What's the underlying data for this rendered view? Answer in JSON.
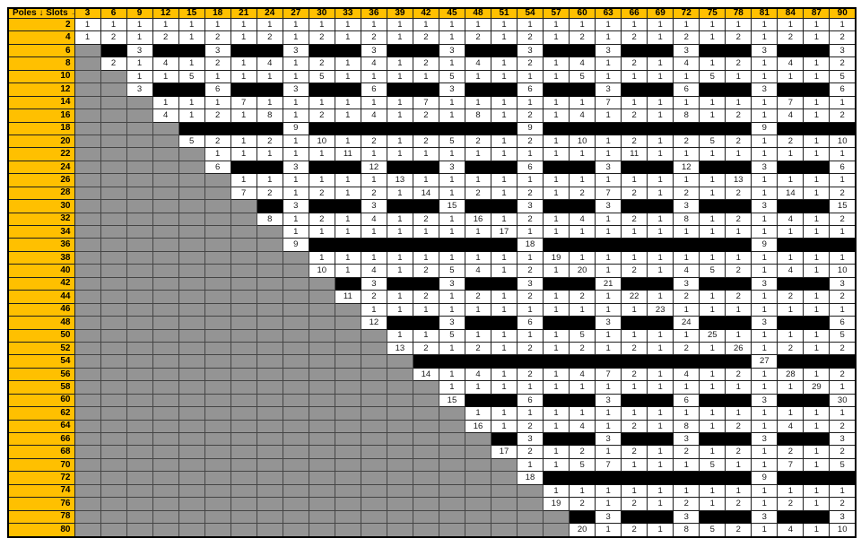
{
  "table": {
    "corner_label": "Poles ↓ Slots →"
  },
  "colors": {
    "header_bg": "#FFC000",
    "header_text": "#000000",
    "cell_text": "#1A1A1A",
    "white_cell": "#FFFFFF",
    "black_cell": "#000000",
    "gray_cell": "#949494",
    "grid_border": "#1F1F1F",
    "outer_border": "#000000"
  },
  "chart_data": {
    "type": "heatmap",
    "title": "Poles ↓ Slots →",
    "x_axis_label": "Slots",
    "y_axis_label": "Poles",
    "grid": true,
    "legend": "none",
    "columns": [
      3,
      6,
      9,
      12,
      15,
      18,
      21,
      24,
      27,
      30,
      33,
      36,
      39,
      42,
      45,
      48,
      51,
      54,
      57,
      60,
      63,
      66,
      69,
      72,
      75,
      78,
      81,
      84,
      87,
      90
    ],
    "rows": [
      2,
      4,
      6,
      8,
      10,
      12,
      14,
      16,
      18,
      20,
      22,
      24,
      26,
      28,
      30,
      32,
      34,
      36,
      38,
      40,
      42,
      44,
      46,
      48,
      50,
      52,
      54,
      56,
      58,
      60,
      62,
      64,
      66,
      68,
      70,
      72,
      74,
      76,
      78,
      80
    ],
    "cell_encoding": {
      "G": "gray cell, no value",
      "B": "black cell, no value",
      "other": "numeric value shown in white cell"
    },
    "matrix": [
      [
        "1",
        "1",
        "1",
        "1",
        "1",
        "1",
        "1",
        "1",
        "1",
        "1",
        "1",
        "1",
        "1",
        "1",
        "1",
        "1",
        "1",
        "1",
        "1",
        "1",
        "1",
        "1",
        "1",
        "1",
        "1",
        "1",
        "1",
        "1",
        "1",
        "1"
      ],
      [
        "1",
        "2",
        "1",
        "2",
        "1",
        "2",
        "1",
        "2",
        "1",
        "2",
        "1",
        "2",
        "1",
        "2",
        "1",
        "2",
        "1",
        "2",
        "1",
        "2",
        "1",
        "2",
        "1",
        "2",
        "1",
        "2",
        "1",
        "2",
        "1",
        "2"
      ],
      [
        "G",
        "B",
        "3",
        "B",
        "B",
        "3",
        "B",
        "B",
        "3",
        "B",
        "B",
        "3",
        "B",
        "B",
        "3",
        "B",
        "B",
        "3",
        "B",
        "B",
        "3",
        "B",
        "B",
        "3",
        "B",
        "B",
        "3",
        "B",
        "B",
        "3"
      ],
      [
        "G",
        "2",
        "1",
        "4",
        "1",
        "2",
        "1",
        "4",
        "1",
        "2",
        "1",
        "4",
        "1",
        "2",
        "1",
        "4",
        "1",
        "2",
        "1",
        "4",
        "1",
        "2",
        "1",
        "4",
        "1",
        "2",
        "1",
        "4",
        "1",
        "2"
      ],
      [
        "G",
        "G",
        "1",
        "1",
        "5",
        "1",
        "1",
        "1",
        "1",
        "5",
        "1",
        "1",
        "1",
        "1",
        "5",
        "1",
        "1",
        "1",
        "1",
        "5",
        "1",
        "1",
        "1",
        "1",
        "5",
        "1",
        "1",
        "1",
        "1",
        "5"
      ],
      [
        "G",
        "G",
        "3",
        "B",
        "B",
        "6",
        "B",
        "B",
        "3",
        "B",
        "B",
        "6",
        "B",
        "B",
        "3",
        "B",
        "B",
        "6",
        "B",
        "B",
        "3",
        "B",
        "B",
        "6",
        "B",
        "B",
        "3",
        "B",
        "B",
        "6"
      ],
      [
        "G",
        "G",
        "G",
        "1",
        "1",
        "1",
        "7",
        "1",
        "1",
        "1",
        "1",
        "1",
        "1",
        "7",
        "1",
        "1",
        "1",
        "1",
        "1",
        "1",
        "7",
        "1",
        "1",
        "1",
        "1",
        "1",
        "1",
        "7",
        "1",
        "1"
      ],
      [
        "G",
        "G",
        "G",
        "4",
        "1",
        "2",
        "1",
        "8",
        "1",
        "2",
        "1",
        "4",
        "1",
        "2",
        "1",
        "8",
        "1",
        "2",
        "1",
        "4",
        "1",
        "2",
        "1",
        "8",
        "1",
        "2",
        "1",
        "4",
        "1",
        "2"
      ],
      [
        "G",
        "G",
        "G",
        "G",
        "B",
        "B",
        "B",
        "B",
        "9",
        "B",
        "B",
        "B",
        "B",
        "B",
        "B",
        "B",
        "B",
        "9",
        "B",
        "B",
        "B",
        "B",
        "B",
        "B",
        "B",
        "B",
        "9",
        "B",
        "B",
        "B"
      ],
      [
        "G",
        "G",
        "G",
        "G",
        "5",
        "2",
        "1",
        "2",
        "1",
        "10",
        "1",
        "2",
        "1",
        "2",
        "5",
        "2",
        "1",
        "2",
        "1",
        "10",
        "1",
        "2",
        "1",
        "2",
        "5",
        "2",
        "1",
        "2",
        "1",
        "10"
      ],
      [
        "G",
        "G",
        "G",
        "G",
        "G",
        "1",
        "1",
        "1",
        "1",
        "1",
        "11",
        "1",
        "1",
        "1",
        "1",
        "1",
        "1",
        "1",
        "1",
        "1",
        "1",
        "11",
        "1",
        "1",
        "1",
        "1",
        "1",
        "1",
        "1",
        "1"
      ],
      [
        "G",
        "G",
        "G",
        "G",
        "G",
        "6",
        "B",
        "B",
        "3",
        "B",
        "B",
        "12",
        "B",
        "B",
        "3",
        "B",
        "B",
        "6",
        "B",
        "B",
        "3",
        "B",
        "B",
        "12",
        "B",
        "B",
        "3",
        "B",
        "B",
        "6"
      ],
      [
        "G",
        "G",
        "G",
        "G",
        "G",
        "G",
        "1",
        "1",
        "1",
        "1",
        "1",
        "1",
        "13",
        "1",
        "1",
        "1",
        "1",
        "1",
        "1",
        "1",
        "1",
        "1",
        "1",
        "1",
        "1",
        "13",
        "1",
        "1",
        "1",
        "1"
      ],
      [
        "G",
        "G",
        "G",
        "G",
        "G",
        "G",
        "7",
        "2",
        "1",
        "2",
        "1",
        "2",
        "1",
        "14",
        "1",
        "2",
        "1",
        "2",
        "1",
        "2",
        "7",
        "2",
        "1",
        "2",
        "1",
        "2",
        "1",
        "14",
        "1",
        "2"
      ],
      [
        "G",
        "G",
        "G",
        "G",
        "G",
        "G",
        "G",
        "B",
        "3",
        "B",
        "B",
        "3",
        "B",
        "B",
        "15",
        "B",
        "B",
        "3",
        "B",
        "B",
        "3",
        "B",
        "B",
        "3",
        "B",
        "B",
        "3",
        "B",
        "B",
        "15"
      ],
      [
        "G",
        "G",
        "G",
        "G",
        "G",
        "G",
        "G",
        "8",
        "1",
        "2",
        "1",
        "4",
        "1",
        "2",
        "1",
        "16",
        "1",
        "2",
        "1",
        "4",
        "1",
        "2",
        "1",
        "8",
        "1",
        "2",
        "1",
        "4",
        "1",
        "2"
      ],
      [
        "G",
        "G",
        "G",
        "G",
        "G",
        "G",
        "G",
        "G",
        "1",
        "1",
        "1",
        "1",
        "1",
        "1",
        "1",
        "1",
        "17",
        "1",
        "1",
        "1",
        "1",
        "1",
        "1",
        "1",
        "1",
        "1",
        "1",
        "1",
        "1",
        "1"
      ],
      [
        "G",
        "G",
        "G",
        "G",
        "G",
        "G",
        "G",
        "G",
        "9",
        "B",
        "B",
        "B",
        "B",
        "B",
        "B",
        "B",
        "B",
        "18",
        "B",
        "B",
        "B",
        "B",
        "B",
        "B",
        "B",
        "B",
        "9",
        "B",
        "B",
        "B"
      ],
      [
        "G",
        "G",
        "G",
        "G",
        "G",
        "G",
        "G",
        "G",
        "G",
        "1",
        "1",
        "1",
        "1",
        "1",
        "1",
        "1",
        "1",
        "1",
        "19",
        "1",
        "1",
        "1",
        "1",
        "1",
        "1",
        "1",
        "1",
        "1",
        "1",
        "1"
      ],
      [
        "G",
        "G",
        "G",
        "G",
        "G",
        "G",
        "G",
        "G",
        "G",
        "10",
        "1",
        "4",
        "1",
        "2",
        "5",
        "4",
        "1",
        "2",
        "1",
        "20",
        "1",
        "2",
        "1",
        "4",
        "5",
        "2",
        "1",
        "4",
        "1",
        "10"
      ],
      [
        "G",
        "G",
        "G",
        "G",
        "G",
        "G",
        "G",
        "G",
        "G",
        "G",
        "B",
        "3",
        "B",
        "B",
        "3",
        "B",
        "B",
        "3",
        "B",
        "B",
        "21",
        "B",
        "B",
        "3",
        "B",
        "B",
        "3",
        "B",
        "B",
        "3"
      ],
      [
        "G",
        "G",
        "G",
        "G",
        "G",
        "G",
        "G",
        "G",
        "G",
        "G",
        "11",
        "2",
        "1",
        "2",
        "1",
        "2",
        "1",
        "2",
        "1",
        "2",
        "1",
        "22",
        "1",
        "2",
        "1",
        "2",
        "1",
        "2",
        "1",
        "2"
      ],
      [
        "G",
        "G",
        "G",
        "G",
        "G",
        "G",
        "G",
        "G",
        "G",
        "G",
        "G",
        "1",
        "1",
        "1",
        "1",
        "1",
        "1",
        "1",
        "1",
        "1",
        "1",
        "1",
        "23",
        "1",
        "1",
        "1",
        "1",
        "1",
        "1",
        "1"
      ],
      [
        "G",
        "G",
        "G",
        "G",
        "G",
        "G",
        "G",
        "G",
        "G",
        "G",
        "G",
        "12",
        "B",
        "B",
        "3",
        "B",
        "B",
        "6",
        "B",
        "B",
        "3",
        "B",
        "B",
        "24",
        "B",
        "B",
        "3",
        "B",
        "B",
        "6"
      ],
      [
        "G",
        "G",
        "G",
        "G",
        "G",
        "G",
        "G",
        "G",
        "G",
        "G",
        "G",
        "G",
        "1",
        "1",
        "5",
        "1",
        "1",
        "1",
        "1",
        "5",
        "1",
        "1",
        "1",
        "1",
        "25",
        "1",
        "1",
        "1",
        "1",
        "5"
      ],
      [
        "G",
        "G",
        "G",
        "G",
        "G",
        "G",
        "G",
        "G",
        "G",
        "G",
        "G",
        "G",
        "13",
        "2",
        "1",
        "2",
        "1",
        "2",
        "1",
        "2",
        "1",
        "2",
        "1",
        "2",
        "1",
        "26",
        "1",
        "2",
        "1",
        "2"
      ],
      [
        "G",
        "G",
        "G",
        "G",
        "G",
        "G",
        "G",
        "G",
        "G",
        "G",
        "G",
        "G",
        "G",
        "B",
        "B",
        "B",
        "B",
        "B",
        "B",
        "B",
        "B",
        "B",
        "B",
        "B",
        "B",
        "B",
        "27",
        "B",
        "B",
        "B"
      ],
      [
        "G",
        "G",
        "G",
        "G",
        "G",
        "G",
        "G",
        "G",
        "G",
        "G",
        "G",
        "G",
        "G",
        "14",
        "1",
        "4",
        "1",
        "2",
        "1",
        "4",
        "7",
        "2",
        "1",
        "4",
        "1",
        "2",
        "1",
        "28",
        "1",
        "2"
      ],
      [
        "G",
        "G",
        "G",
        "G",
        "G",
        "G",
        "G",
        "G",
        "G",
        "G",
        "G",
        "G",
        "G",
        "G",
        "1",
        "1",
        "1",
        "1",
        "1",
        "1",
        "1",
        "1",
        "1",
        "1",
        "1",
        "1",
        "1",
        "1",
        "29",
        "1"
      ],
      [
        "G",
        "G",
        "G",
        "G",
        "G",
        "G",
        "G",
        "G",
        "G",
        "G",
        "G",
        "G",
        "G",
        "G",
        "15",
        "B",
        "B",
        "6",
        "B",
        "B",
        "3",
        "B",
        "B",
        "6",
        "B",
        "B",
        "3",
        "B",
        "B",
        "30"
      ],
      [
        "G",
        "G",
        "G",
        "G",
        "G",
        "G",
        "G",
        "G",
        "G",
        "G",
        "G",
        "G",
        "G",
        "G",
        "G",
        "1",
        "1",
        "1",
        "1",
        "1",
        "1",
        "1",
        "1",
        "1",
        "1",
        "1",
        "1",
        "1",
        "1",
        "1"
      ],
      [
        "G",
        "G",
        "G",
        "G",
        "G",
        "G",
        "G",
        "G",
        "G",
        "G",
        "G",
        "G",
        "G",
        "G",
        "G",
        "16",
        "1",
        "2",
        "1",
        "4",
        "1",
        "2",
        "1",
        "8",
        "1",
        "2",
        "1",
        "4",
        "1",
        "2"
      ],
      [
        "G",
        "G",
        "G",
        "G",
        "G",
        "G",
        "G",
        "G",
        "G",
        "G",
        "G",
        "G",
        "G",
        "G",
        "G",
        "G",
        "B",
        "3",
        "B",
        "B",
        "3",
        "B",
        "B",
        "3",
        "B",
        "B",
        "3",
        "B",
        "B",
        "3"
      ],
      [
        "G",
        "G",
        "G",
        "G",
        "G",
        "G",
        "G",
        "G",
        "G",
        "G",
        "G",
        "G",
        "G",
        "G",
        "G",
        "G",
        "17",
        "2",
        "1",
        "2",
        "1",
        "2",
        "1",
        "2",
        "1",
        "2",
        "1",
        "2",
        "1",
        "2"
      ],
      [
        "G",
        "G",
        "G",
        "G",
        "G",
        "G",
        "G",
        "G",
        "G",
        "G",
        "G",
        "G",
        "G",
        "G",
        "G",
        "G",
        "G",
        "1",
        "1",
        "5",
        "7",
        "1",
        "1",
        "1",
        "5",
        "1",
        "1",
        "7",
        "1",
        "5"
      ],
      [
        "G",
        "G",
        "G",
        "G",
        "G",
        "G",
        "G",
        "G",
        "G",
        "G",
        "G",
        "G",
        "G",
        "G",
        "G",
        "G",
        "G",
        "18",
        "B",
        "B",
        "B",
        "B",
        "B",
        "B",
        "B",
        "B",
        "9",
        "B",
        "B",
        "B"
      ],
      [
        "G",
        "G",
        "G",
        "G",
        "G",
        "G",
        "G",
        "G",
        "G",
        "G",
        "G",
        "G",
        "G",
        "G",
        "G",
        "G",
        "G",
        "G",
        "1",
        "1",
        "1",
        "1",
        "1",
        "1",
        "1",
        "1",
        "1",
        "1",
        "1",
        "1"
      ],
      [
        "G",
        "G",
        "G",
        "G",
        "G",
        "G",
        "G",
        "G",
        "G",
        "G",
        "G",
        "G",
        "G",
        "G",
        "G",
        "G",
        "G",
        "G",
        "19",
        "2",
        "1",
        "2",
        "1",
        "2",
        "1",
        "2",
        "1",
        "2",
        "1",
        "2"
      ],
      [
        "G",
        "G",
        "G",
        "G",
        "G",
        "G",
        "G",
        "G",
        "G",
        "G",
        "G",
        "G",
        "G",
        "G",
        "G",
        "G",
        "G",
        "G",
        "G",
        "B",
        "3",
        "B",
        "B",
        "3",
        "B",
        "B",
        "3",
        "B",
        "B",
        "3"
      ],
      [
        "G",
        "G",
        "G",
        "G",
        "G",
        "G",
        "G",
        "G",
        "G",
        "G",
        "G",
        "G",
        "G",
        "G",
        "G",
        "G",
        "G",
        "G",
        "G",
        "20",
        "1",
        "2",
        "1",
        "8",
        "5",
        "2",
        "1",
        "4",
        "1",
        "10"
      ]
    ]
  }
}
